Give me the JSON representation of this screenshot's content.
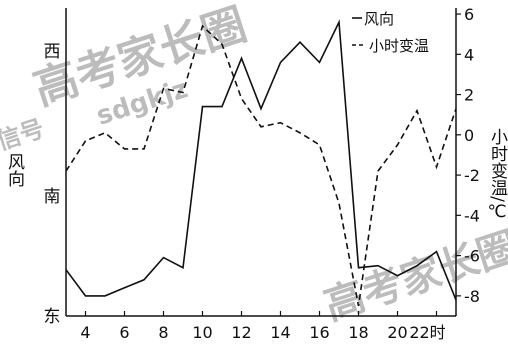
{
  "chart_data": {
    "type": "line",
    "x": [
      3,
      4,
      5,
      6,
      7,
      8,
      9,
      10,
      11,
      12,
      13,
      14,
      15,
      16,
      17,
      18,
      19,
      20,
      21,
      22,
      23
    ],
    "x_ticks": [
      "4",
      "6",
      "8",
      "10",
      "12",
      "14",
      "16",
      "18",
      "20",
      "22时"
    ],
    "left_axis": {
      "label": "风向",
      "categories": [
        "东",
        "南",
        "西"
      ]
    },
    "right_axis": {
      "label": "小时变温/℃",
      "ticks": [
        "6",
        "4",
        "2",
        "0",
        "-2",
        "-4",
        "-6",
        "-8"
      ],
      "ylim": [
        -9,
        6.3
      ]
    },
    "series": [
      {
        "name": "风向",
        "style": "solid",
        "axis": "left",
        "values": [
          -6.7,
          -8,
          -8,
          -7.6,
          -7.2,
          -6.1,
          -6.6,
          1.4,
          1.4,
          3.8,
          1.3,
          3.6,
          4.6,
          3.6,
          5.6,
          -6.6,
          -6.5,
          -7,
          -6.5,
          -5.8,
          -8.2
        ]
      },
      {
        "name": "小时变温",
        "style": "dashed",
        "axis": "right",
        "values": [
          -1.8,
          -0.3,
          0.1,
          -0.7,
          -0.7,
          2.3,
          2.1,
          5.4,
          4.5,
          1.8,
          0.4,
          0.6,
          0.1,
          -0.5,
          -3.4,
          -8.5,
          -1.8,
          -0.5,
          1.2,
          -1.6,
          1.3
        ]
      }
    ]
  },
  "watermark": {
    "text1": "高考家长圈",
    "text2": "sdgkjz",
    "text3": "信号"
  }
}
